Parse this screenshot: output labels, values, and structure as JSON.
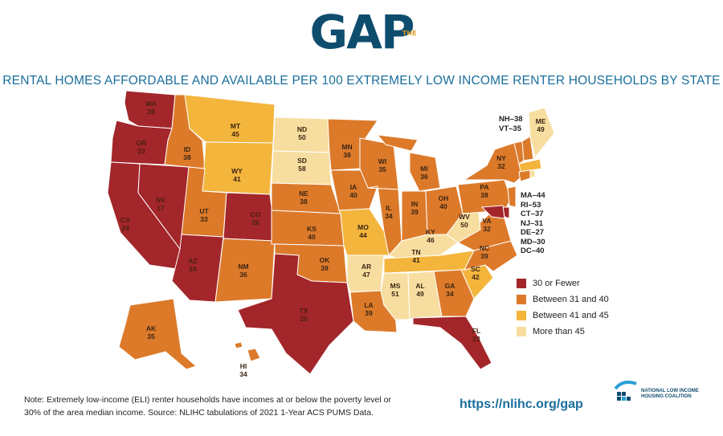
{
  "header": {
    "logo_text": "GAP",
    "logo_superscript": "THE",
    "title": "RENTAL HOMES AFFORDABLE AND AVAILABLE PER 100 EXTREMELY LOW INCOME RENTER HOUSEHOLDS BY STATE"
  },
  "colors": {
    "low": "#a3262a",
    "mid": "#dc7a2a",
    "high": "#f4b53d",
    "top": "#f7dea0",
    "logo": "#0f4d6e",
    "title": "#1a6e9c"
  },
  "legend": [
    {
      "label": "30 or Fewer",
      "color": "#a3262a"
    },
    {
      "label": "Between 31 and 40",
      "color": "#dc7a2a"
    },
    {
      "label": "Between 41 and 45",
      "color": "#f4b53d"
    },
    {
      "label": "More than 45",
      "color": "#f7dea0"
    }
  ],
  "states": {
    "WA": {
      "name": "WA",
      "value": "28"
    },
    "OR": {
      "name": "OR",
      "value": "23"
    },
    "CA": {
      "name": "CA",
      "value": "24"
    },
    "NV": {
      "name": "NV",
      "value": "17"
    },
    "ID": {
      "name": "ID",
      "value": "38"
    },
    "MT": {
      "name": "MT",
      "value": "45"
    },
    "WY": {
      "name": "WY",
      "value": "41"
    },
    "UT": {
      "name": "UT",
      "value": "33"
    },
    "CO": {
      "name": "CO",
      "value": "26"
    },
    "AZ": {
      "name": "AZ",
      "value": "24"
    },
    "NM": {
      "name": "NM",
      "value": "36"
    },
    "ND": {
      "name": "ND",
      "value": "50"
    },
    "SD": {
      "name": "SD",
      "value": "58"
    },
    "NE": {
      "name": "NE",
      "value": "38"
    },
    "KS": {
      "name": "KS",
      "value": "40"
    },
    "OK": {
      "name": "OK",
      "value": "39"
    },
    "TX": {
      "name": "TX",
      "value": "25"
    },
    "MN": {
      "name": "MN",
      "value": "38"
    },
    "IA": {
      "name": "IA",
      "value": "40"
    },
    "MO": {
      "name": "MO",
      "value": "44"
    },
    "AR": {
      "name": "AR",
      "value": "47"
    },
    "LA": {
      "name": "LA",
      "value": "39"
    },
    "WI": {
      "name": "WI",
      "value": "35"
    },
    "IL": {
      "name": "IL",
      "value": "34"
    },
    "MI": {
      "name": "MI",
      "value": "36"
    },
    "IN": {
      "name": "IN",
      "value": "39"
    },
    "OH": {
      "name": "OH",
      "value": "40"
    },
    "KY": {
      "name": "KY",
      "value": "46"
    },
    "TN": {
      "name": "TN",
      "value": "41"
    },
    "MS": {
      "name": "MS",
      "value": "51"
    },
    "AL": {
      "name": "AL",
      "value": "49"
    },
    "GA": {
      "name": "GA",
      "value": "34"
    },
    "FL": {
      "name": "FL",
      "value": "23"
    },
    "SC": {
      "name": "SC",
      "value": "42"
    },
    "NC": {
      "name": "NC",
      "value": "39"
    },
    "VA": {
      "name": "VA",
      "value": "32"
    },
    "WV": {
      "name": "WV",
      "value": "50"
    },
    "PA": {
      "name": "PA",
      "value": "38"
    },
    "NY": {
      "name": "NY",
      "value": "32"
    },
    "ME": {
      "name": "ME",
      "value": "49"
    },
    "AK": {
      "name": "AK",
      "value": "35"
    },
    "HI": {
      "name": "HI",
      "value": "34"
    }
  },
  "callouts": {
    "northeast": [
      "NH–38",
      "VT–35"
    ],
    "midatlantic": [
      "MA–44",
      "RI–53",
      "CT–37",
      "NJ–31",
      "DE–27",
      "MD–30",
      "DC–40"
    ]
  },
  "footer": {
    "note_line1": "Note: Extremely low-income (ELI) renter households have incomes at or below the poverty level or",
    "note_line2": "30% of the area median income. Source: NLIHC tabulations of 2021 1-Year ACS PUMS Data.",
    "url": "https://nlihc.org/gap",
    "org_line1": "NATIONAL LOW INCOME",
    "org_line2": "HOUSING COALITION"
  }
}
